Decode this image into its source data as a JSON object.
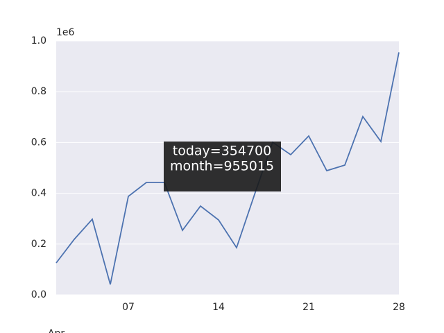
{
  "chart_data": {
    "type": "line",
    "x": [
      1.4,
      2.8,
      4.2,
      5.6,
      7.0,
      8.4,
      9.8,
      11.2,
      12.6,
      14.0,
      15.4,
      16.8,
      18.2,
      19.6,
      21.0,
      22.4,
      23.8,
      25.2,
      26.6,
      28.0
    ],
    "series": [
      {
        "color": "#4c72b0",
        "values": [
          125700,
          218600,
          297800,
          41000,
          388000,
          442600,
          442600,
          254100,
          349700,
          295000,
          185800,
          396000,
          601000,
          551900,
          625700,
          489100,
          510900,
          702200,
          603800,
          955015
        ]
      }
    ],
    "xlim": [
      1.4,
      28
    ],
    "xticks": [
      {
        "value": 7,
        "label": "07"
      },
      {
        "value": 14,
        "label": "14"
      },
      {
        "value": 21,
        "label": "21"
      },
      {
        "value": 28,
        "label": "28"
      }
    ],
    "x_offset_label": "Apr",
    "ylim": [
      0,
      1000000
    ],
    "yticks": [
      {
        "value": 0,
        "label": "0.0"
      },
      {
        "value": 200000,
        "label": "0.2"
      },
      {
        "value": 400000,
        "label": "0.4"
      },
      {
        "value": 600000,
        "label": "0.6"
      },
      {
        "value": 800000,
        "label": "0.8"
      },
      {
        "value": 1000000,
        "label": "1.0"
      }
    ],
    "y_offset_label": "1e6",
    "grid": true,
    "tooltip": [
      "today=354700",
      "month=955015"
    ]
  }
}
